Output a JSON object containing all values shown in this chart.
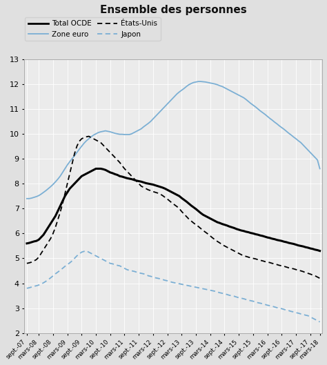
{
  "title": "Ensemble des personnes",
  "ylim": [
    2,
    13
  ],
  "yticks": [
    2,
    3,
    4,
    5,
    6,
    7,
    8,
    9,
    10,
    11,
    12,
    13
  ],
  "bg_color": "#e0e0e0",
  "plot_bg_color": "#ebebeb",
  "grid_color": "#ffffff",
  "x_tick_labels": [
    "sept.-07",
    "mars-08",
    "sept.-08",
    "mars-09",
    "sept.-09",
    "mars-10",
    "sept.-10",
    "mars-11",
    "sept.-11",
    "mars-12",
    "sept.-12",
    "mars-13",
    "sept.-13",
    "mars-14",
    "sept.-14",
    "mars-15",
    "sept.-15",
    "mars-16",
    "sept.-16",
    "mars-17",
    "sept.-17",
    "mars-18"
  ],
  "total_ocde": [
    5.6,
    5.62,
    5.65,
    5.68,
    5.7,
    5.75,
    5.85,
    5.95,
    6.1,
    6.25,
    6.4,
    6.55,
    6.7,
    6.9,
    7.1,
    7.3,
    7.5,
    7.65,
    7.8,
    7.9,
    8.0,
    8.1,
    8.2,
    8.3,
    8.35,
    8.4,
    8.45,
    8.5,
    8.55,
    8.6,
    8.6,
    8.6,
    8.58,
    8.55,
    8.5,
    8.45,
    8.42,
    8.38,
    8.35,
    8.3,
    8.28,
    8.25,
    8.22,
    8.2,
    8.18,
    8.15,
    8.12,
    8.1,
    8.08,
    8.05,
    8.02,
    8.0,
    7.98,
    7.96,
    7.93,
    7.9,
    7.87,
    7.84,
    7.8,
    7.75,
    7.7,
    7.65,
    7.6,
    7.55,
    7.5,
    7.42,
    7.35,
    7.28,
    7.2,
    7.12,
    7.05,
    6.98,
    6.9,
    6.82,
    6.75,
    6.7,
    6.65,
    6.6,
    6.55,
    6.5,
    6.45,
    6.42,
    6.38,
    6.35,
    6.32,
    6.28,
    6.25,
    6.22,
    6.18,
    6.15,
    6.12,
    6.1,
    6.07,
    6.05,
    6.02,
    6.0,
    5.97,
    5.95,
    5.92,
    5.9,
    5.87,
    5.84,
    5.82,
    5.79,
    5.77,
    5.74,
    5.72,
    5.7,
    5.67,
    5.65,
    5.62,
    5.6,
    5.58,
    5.55,
    5.52,
    5.5,
    5.48,
    5.45,
    5.43,
    5.4,
    5.38,
    5.35,
    5.33,
    5.3
  ],
  "zone_euro": [
    7.4,
    7.4,
    7.42,
    7.45,
    7.48,
    7.52,
    7.58,
    7.65,
    7.72,
    7.8,
    7.88,
    7.97,
    8.07,
    8.18,
    8.3,
    8.45,
    8.6,
    8.75,
    8.88,
    9.0,
    9.12,
    9.25,
    9.38,
    9.5,
    9.62,
    9.72,
    9.8,
    9.88,
    9.95,
    10.0,
    10.05,
    10.08,
    10.1,
    10.12,
    10.1,
    10.08,
    10.05,
    10.02,
    10.0,
    9.98,
    9.98,
    9.97,
    9.97,
    9.97,
    10.0,
    10.05,
    10.1,
    10.15,
    10.2,
    10.28,
    10.35,
    10.42,
    10.5,
    10.6,
    10.7,
    10.8,
    10.9,
    11.0,
    11.1,
    11.2,
    11.3,
    11.4,
    11.5,
    11.6,
    11.68,
    11.75,
    11.82,
    11.9,
    11.97,
    12.02,
    12.06,
    12.08,
    12.1,
    12.1,
    12.09,
    12.08,
    12.06,
    12.04,
    12.02,
    12.0,
    11.97,
    11.93,
    11.9,
    11.85,
    11.8,
    11.75,
    11.7,
    11.65,
    11.6,
    11.55,
    11.5,
    11.45,
    11.38,
    11.3,
    11.22,
    11.15,
    11.08,
    11.0,
    10.92,
    10.85,
    10.78,
    10.7,
    10.62,
    10.55,
    10.47,
    10.4,
    10.32,
    10.25,
    10.18,
    10.1,
    10.02,
    9.95,
    9.87,
    9.8,
    9.72,
    9.65,
    9.55,
    9.45,
    9.35,
    9.25,
    9.15,
    9.05,
    8.95,
    8.6
  ],
  "etats_unis": [
    4.8,
    4.82,
    4.85,
    4.9,
    4.95,
    5.05,
    5.2,
    5.35,
    5.5,
    5.65,
    5.8,
    6.0,
    6.25,
    6.55,
    6.85,
    7.2,
    7.6,
    8.0,
    8.4,
    8.8,
    9.2,
    9.5,
    9.7,
    9.8,
    9.85,
    9.88,
    9.9,
    9.85,
    9.8,
    9.75,
    9.7,
    9.65,
    9.55,
    9.45,
    9.35,
    9.25,
    9.15,
    9.05,
    8.95,
    8.85,
    8.72,
    8.6,
    8.5,
    8.4,
    8.3,
    8.2,
    8.1,
    8.0,
    7.9,
    7.85,
    7.8,
    7.75,
    7.72,
    7.68,
    7.65,
    7.62,
    7.58,
    7.52,
    7.45,
    7.38,
    7.3,
    7.22,
    7.15,
    7.08,
    7.0,
    6.88,
    6.78,
    6.68,
    6.58,
    6.5,
    6.42,
    6.35,
    6.28,
    6.2,
    6.12,
    6.05,
    5.98,
    5.9,
    5.82,
    5.75,
    5.68,
    5.62,
    5.55,
    5.5,
    5.45,
    5.4,
    5.35,
    5.3,
    5.25,
    5.2,
    5.15,
    5.1,
    5.08,
    5.05,
    5.02,
    5.0,
    4.98,
    4.95,
    4.92,
    4.9,
    4.87,
    4.85,
    4.83,
    4.8,
    4.78,
    4.75,
    4.72,
    4.7,
    4.68,
    4.65,
    4.62,
    4.6,
    4.58,
    4.55,
    4.52,
    4.5,
    4.47,
    4.43,
    4.4,
    4.37,
    4.33,
    4.3,
    4.25,
    4.2
  ],
  "japon": [
    3.8,
    3.82,
    3.85,
    3.88,
    3.9,
    3.93,
    3.97,
    4.02,
    4.08,
    4.15,
    4.22,
    4.3,
    4.38,
    4.45,
    4.52,
    4.6,
    4.68,
    4.75,
    4.82,
    4.9,
    5.0,
    5.1,
    5.18,
    5.25,
    5.28,
    5.3,
    5.25,
    5.2,
    5.15,
    5.1,
    5.05,
    5.0,
    4.95,
    4.9,
    4.85,
    4.8,
    4.78,
    4.75,
    4.72,
    4.7,
    4.65,
    4.6,
    4.55,
    4.52,
    4.5,
    4.48,
    4.45,
    4.42,
    4.4,
    4.38,
    4.35,
    4.3,
    4.28,
    4.25,
    4.22,
    4.2,
    4.18,
    4.15,
    4.12,
    4.1,
    4.07,
    4.04,
    4.02,
    4.0,
    3.98,
    3.96,
    3.94,
    3.92,
    3.9,
    3.88,
    3.86,
    3.84,
    3.82,
    3.8,
    3.78,
    3.76,
    3.74,
    3.72,
    3.7,
    3.68,
    3.65,
    3.62,
    3.6,
    3.58,
    3.55,
    3.52,
    3.5,
    3.48,
    3.45,
    3.42,
    3.4,
    3.38,
    3.35,
    3.32,
    3.3,
    3.28,
    3.25,
    3.22,
    3.2,
    3.18,
    3.15,
    3.12,
    3.1,
    3.08,
    3.05,
    3.02,
    3.0,
    2.98,
    2.95,
    2.92,
    2.9,
    2.87,
    2.85,
    2.82,
    2.8,
    2.77,
    2.75,
    2.72,
    2.7,
    2.65,
    2.6,
    2.55,
    2.5,
    2.45
  ],
  "n_ticks": 22,
  "tick_positions": [
    0,
    5,
    11,
    17,
    23,
    29,
    35,
    41,
    47,
    53,
    59,
    65,
    71,
    77,
    83,
    89,
    95,
    101,
    107,
    113,
    119,
    123
  ]
}
